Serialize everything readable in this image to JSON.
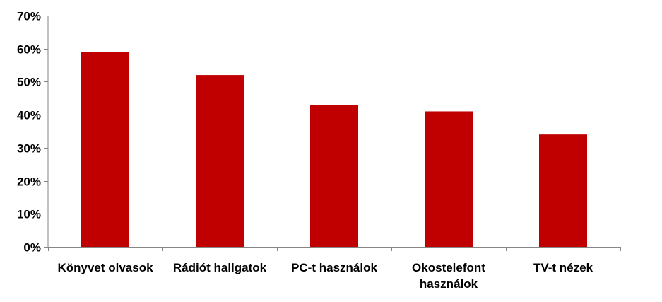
{
  "chart_data": {
    "type": "bar",
    "categories": [
      [
        "Könyvet olvasok"
      ],
      [
        "Rádiót hallgatok"
      ],
      [
        "PC-t használok"
      ],
      [
        "Okostelefont",
        "használok"
      ],
      [
        "TV-t nézek"
      ]
    ],
    "values": [
      59,
      52,
      43,
      41,
      34
    ],
    "ylim": [
      0,
      70
    ],
    "yticks": [
      0,
      10,
      20,
      30,
      40,
      50,
      60,
      70
    ],
    "ytick_labels": [
      "0%",
      "10%",
      "20%",
      "30%",
      "40%",
      "50%",
      "60%",
      "70%"
    ],
    "grid": false,
    "legend": "none",
    "bar_color": "#C00000",
    "title": "",
    "xlabel": "",
    "ylabel": ""
  }
}
